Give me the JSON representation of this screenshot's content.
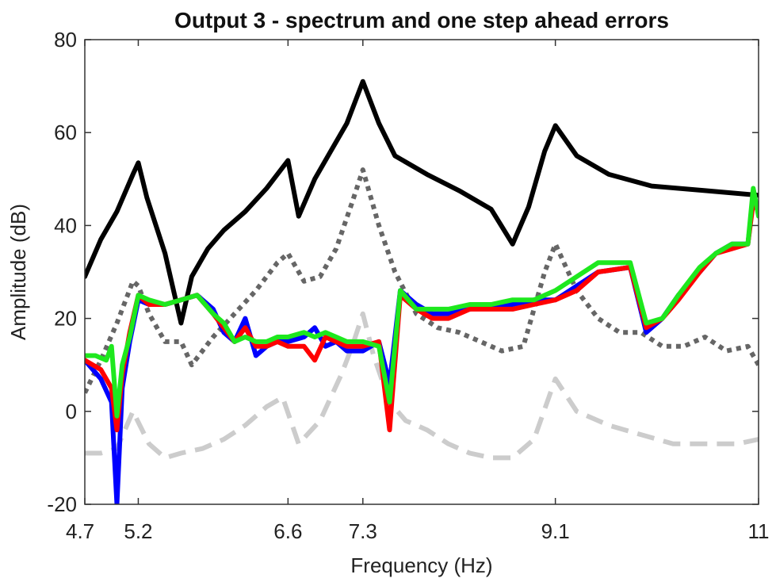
{
  "chart_data": {
    "type": "line",
    "title": "Output 3 - spectrum and one step ahead errors",
    "xlabel": "Frequency (Hz)",
    "ylabel": "Amplitude (dB)",
    "xlim": [
      4.7,
      11
    ],
    "ylim": [
      -20,
      80
    ],
    "xticks": [
      4.7,
      5.2,
      6.6,
      7.3,
      9.1,
      11
    ],
    "xtick_labels": [
      "4.7",
      "5.2",
      "6.6",
      "7.3",
      "9.1",
      "11"
    ],
    "yticks": [
      -20,
      0,
      20,
      40,
      60,
      80
    ],
    "ytick_labels": [
      "-20",
      "0",
      "20",
      "40",
      "60",
      "80"
    ],
    "grid": false,
    "legend": "none",
    "series": [
      {
        "color": "#000000",
        "style": "solid",
        "width": 6,
        "x": [
          4.7,
          4.85,
          5.0,
          5.15,
          5.2,
          5.28,
          5.45,
          5.6,
          5.7,
          5.85,
          6.0,
          6.2,
          6.4,
          6.6,
          6.7,
          6.85,
          7.0,
          7.15,
          7.3,
          7.45,
          7.6,
          7.9,
          8.2,
          8.5,
          8.7,
          8.85,
          9.0,
          9.1,
          9.3,
          9.6,
          10.0,
          10.5,
          11.0
        ],
        "y": [
          29,
          37,
          43,
          51,
          53.5,
          46,
          34,
          19,
          29,
          35,
          39,
          43,
          48,
          54,
          42,
          50,
          56,
          62,
          71,
          62,
          55,
          51,
          47.5,
          43.5,
          36,
          44,
          56,
          61.5,
          55,
          51,
          48.5,
          47.5,
          46.5
        ]
      },
      {
        "color": "#0000ff",
        "style": "solid",
        "width": 6,
        "x": [
          4.7,
          4.85,
          4.95,
          5.0,
          5.05,
          5.12,
          5.2,
          5.3,
          5.45,
          5.6,
          5.75,
          5.9,
          6.0,
          6.1,
          6.2,
          6.3,
          6.4,
          6.5,
          6.6,
          6.75,
          6.85,
          6.95,
          7.05,
          7.15,
          7.3,
          7.45,
          7.55,
          7.65,
          7.8,
          7.95,
          8.1,
          8.3,
          8.5,
          8.7,
          8.9,
          9.1,
          9.3,
          9.5,
          9.8,
          9.95,
          10.1,
          10.25,
          10.45,
          10.6,
          10.75,
          10.9,
          10.95,
          11.0
        ],
        "y": [
          11,
          7,
          2,
          -20,
          5,
          15,
          24,
          23,
          23,
          24,
          25,
          22,
          17,
          15,
          20,
          12,
          14,
          15,
          15,
          16,
          18,
          14,
          15,
          13,
          13,
          15,
          6,
          26,
          23,
          21,
          21,
          22,
          23,
          23,
          24,
          24,
          27,
          30,
          31,
          17,
          20,
          25,
          30,
          34,
          36,
          36,
          46,
          43
        ]
      },
      {
        "color": "#ff0000",
        "style": "solid",
        "width": 6,
        "x": [
          4.7,
          4.85,
          4.95,
          5.0,
          5.05,
          5.12,
          5.2,
          5.3,
          5.45,
          5.6,
          5.75,
          5.9,
          6.0,
          6.1,
          6.2,
          6.3,
          6.4,
          6.5,
          6.6,
          6.75,
          6.85,
          6.95,
          7.05,
          7.15,
          7.3,
          7.45,
          7.55,
          7.65,
          7.8,
          7.95,
          8.1,
          8.3,
          8.5,
          8.7,
          8.9,
          9.1,
          9.3,
          9.5,
          9.8,
          9.95,
          10.1,
          10.25,
          10.45,
          10.6,
          10.75,
          10.9,
          10.95,
          11.0
        ],
        "y": [
          11,
          9,
          5,
          -4,
          8,
          17,
          25,
          23,
          23,
          24,
          25,
          21,
          18,
          15,
          18,
          14,
          14,
          15,
          14,
          14,
          11,
          16,
          15,
          14,
          14,
          15,
          -4,
          25,
          22,
          20,
          20,
          22,
          22,
          22,
          23,
          24,
          26,
          30,
          31,
          18,
          20,
          24,
          30,
          34,
          35,
          36,
          45,
          43
        ]
      },
      {
        "color": "#1ee81e",
        "style": "solid",
        "width": 6,
        "x": [
          4.7,
          4.8,
          4.9,
          4.95,
          5.0,
          5.05,
          5.12,
          5.2,
          5.3,
          5.45,
          5.6,
          5.75,
          5.9,
          6.0,
          6.1,
          6.2,
          6.3,
          6.4,
          6.5,
          6.6,
          6.75,
          6.85,
          6.95,
          7.05,
          7.15,
          7.3,
          7.45,
          7.55,
          7.65,
          7.8,
          7.95,
          8.1,
          8.3,
          8.5,
          8.7,
          8.9,
          9.1,
          9.3,
          9.5,
          9.8,
          9.95,
          10.1,
          10.25,
          10.45,
          10.6,
          10.75,
          10.9,
          10.95,
          11.0
        ],
        "y": [
          12,
          12,
          11,
          14,
          -1,
          10,
          16,
          25,
          24,
          23,
          24,
          25,
          21,
          19,
          15,
          16,
          15,
          15,
          16,
          16,
          17,
          16,
          17,
          16,
          15,
          15,
          14,
          2,
          26,
          22,
          22,
          22,
          23,
          23,
          24,
          24,
          26,
          29,
          32,
          32,
          19,
          20,
          25,
          31,
          34,
          36,
          36,
          48,
          42
        ]
      },
      {
        "color": "#666666",
        "style": "dotted",
        "width": 6,
        "x": [
          4.7,
          4.85,
          5.0,
          5.15,
          5.2,
          5.3,
          5.45,
          5.6,
          5.7,
          5.9,
          6.1,
          6.3,
          6.5,
          6.6,
          6.75,
          6.9,
          7.05,
          7.2,
          7.3,
          7.45,
          7.6,
          7.8,
          8.0,
          8.2,
          8.4,
          8.6,
          8.8,
          9.0,
          9.1,
          9.3,
          9.5,
          9.7,
          9.9,
          10.1,
          10.3,
          10.5,
          10.7,
          10.9,
          11.0
        ],
        "y": [
          4,
          11,
          19,
          28,
          27,
          21,
          15,
          15,
          10,
          16,
          21,
          26,
          32,
          34,
          28,
          29,
          35,
          45,
          52,
          40,
          30,
          21,
          18,
          17,
          15,
          13,
          14,
          30,
          36,
          26,
          20,
          17,
          17,
          14,
          14,
          16,
          13,
          14,
          10
        ]
      },
      {
        "color": "#cccccc",
        "style": "dashed",
        "width": 6,
        "x": [
          4.7,
          4.85,
          5.0,
          5.15,
          5.3,
          5.45,
          5.6,
          5.8,
          6.0,
          6.2,
          6.4,
          6.55,
          6.7,
          6.9,
          7.1,
          7.2,
          7.3,
          7.4,
          7.55,
          7.7,
          7.9,
          8.1,
          8.3,
          8.5,
          8.7,
          8.9,
          9.1,
          9.3,
          9.6,
          9.9,
          10.2,
          10.5,
          10.8,
          11.0
        ],
        "y": [
          -9,
          -9,
          -8,
          0,
          -7,
          -10,
          -9,
          -8,
          -6,
          -3,
          1,
          3,
          -7,
          -2,
          8,
          14,
          21,
          12,
          2,
          -2,
          -4,
          -7,
          -9,
          -10,
          -10,
          -6,
          7,
          0,
          -3,
          -5,
          -7,
          -7,
          -7,
          -6
        ]
      }
    ]
  }
}
